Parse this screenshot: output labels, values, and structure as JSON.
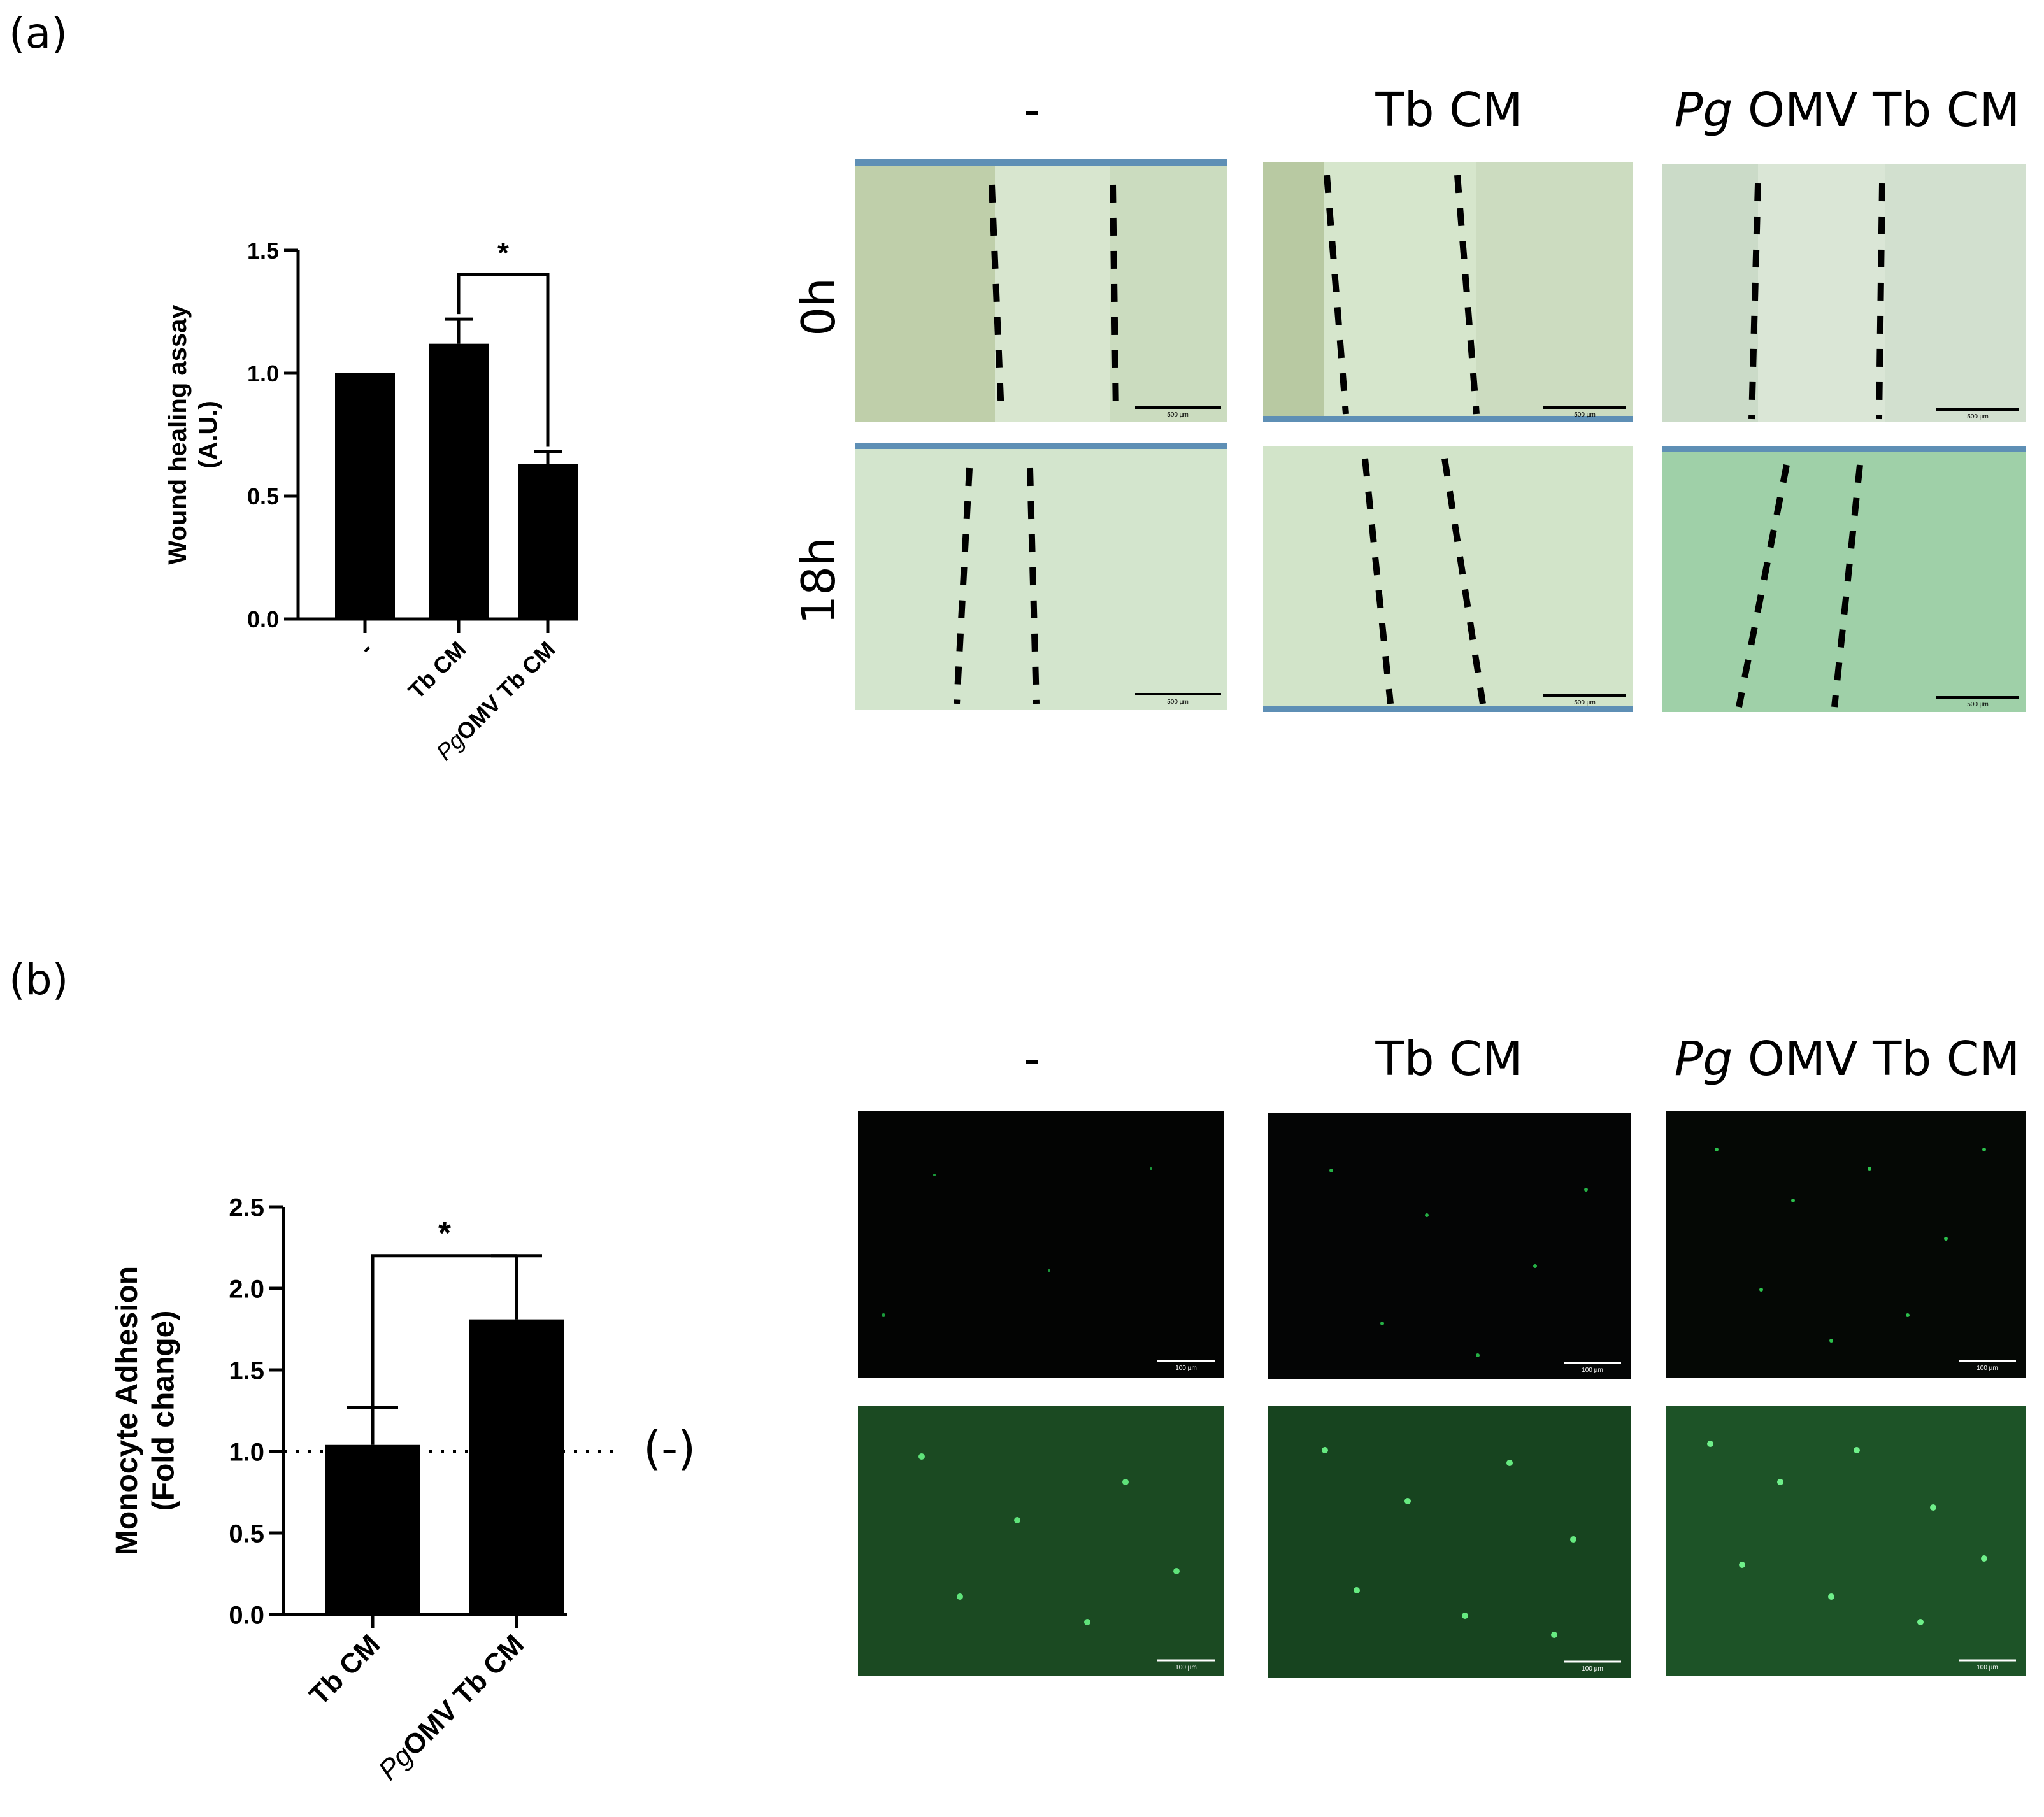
{
  "panels": {
    "a": {
      "label": "(a)"
    },
    "b": {
      "label": "(b)"
    }
  },
  "column_headers": {
    "neg": "-",
    "tb_cm": "Tb CM",
    "pg_italic": "Pg",
    "pg_rest": " OMV Tb CM"
  },
  "row_labels": {
    "h0": "0h",
    "h18": "18h"
  },
  "scale_bars": {
    "a": "500 µm",
    "b": "100 µm"
  },
  "reference_label": "(-)",
  "chart_data": [
    {
      "type": "bar",
      "panel": "(a)",
      "ylabel_line1": "Wound healing assay",
      "ylabel_line2": "(A.U.)",
      "categories": [
        "-",
        "Tb CM",
        "OMV Tb CM"
      ],
      "category_prefix_italic": [
        "",
        "",
        "Pg"
      ],
      "values": [
        1.0,
        1.12,
        0.63
      ],
      "errors": [
        0,
        0.1,
        0.05
      ],
      "ylim": [
        0,
        1.5
      ],
      "yticks": [
        "0.0",
        "0.5",
        "1.0",
        "1.5"
      ],
      "significance": {
        "between": [
          1,
          2
        ],
        "label": "*"
      },
      "bar_color": "#000000"
    },
    {
      "type": "bar",
      "panel": "(b)",
      "ylabel_line1": "Monocyte Adhesion",
      "ylabel_line2": "(Fold change)",
      "categories": [
        "Tb CM",
        "OMV Tb CM"
      ],
      "category_prefix_italic": [
        "",
        "Pg"
      ],
      "values": [
        1.04,
        1.81
      ],
      "errors": [
        0.23,
        0.39
      ],
      "ylim": [
        0,
        2.5
      ],
      "yticks": [
        "0.0",
        "0.5",
        "1.0",
        "1.5",
        "2.0",
        "2.5"
      ],
      "reference_line": 1.0,
      "significance": {
        "between": [
          0,
          1
        ],
        "label": "*"
      },
      "bar_color": "#000000"
    }
  ]
}
